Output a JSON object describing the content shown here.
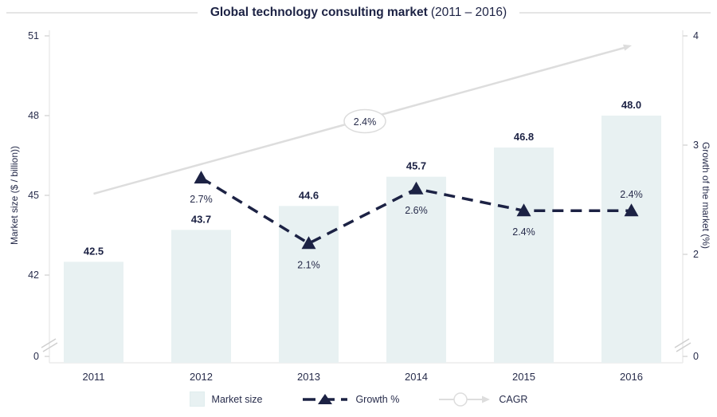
{
  "title": {
    "main": "Global technology consulting market",
    "range": "(2011 – 2016)"
  },
  "colors": {
    "navy": "#1c2244",
    "bar_fill": "#e8f1f2",
    "cagr_line": "#dddddd",
    "axis_line": "#ececec",
    "tick_mark": "#d9d9d9",
    "break_mark": "#cfcfcf",
    "text": "#272c4b",
    "title_rule": "#e5e5e5",
    "badge_fill": "#ffffff",
    "badge_border": "#dcdcdc"
  },
  "chart_data": {
    "type": "bar",
    "title": "Global technology consulting market (2011 – 2016)",
    "categories": [
      "2011",
      "2012",
      "2013",
      "2014",
      "2015",
      "2016"
    ],
    "series": [
      {
        "name": "Market size",
        "type": "bar",
        "axis": "left",
        "values": [
          42.5,
          43.7,
          44.6,
          45.7,
          46.8,
          48.0
        ],
        "labels": [
          "42.5",
          "43.7",
          "44.6",
          "45.7",
          "46.8",
          "48.0"
        ]
      },
      {
        "name": "Growth %",
        "type": "line",
        "axis": "right",
        "values": [
          null,
          2.7,
          2.1,
          2.6,
          2.4,
          2.4
        ],
        "labels": [
          "",
          "2.7%",
          "2.1%",
          "2.6%",
          "2.4%",
          "2.4%"
        ],
        "label_position": [
          "",
          "below",
          "below",
          "below",
          "below",
          "above"
        ]
      },
      {
        "name": "CAGR",
        "type": "trend-arrow",
        "label": "2.4%"
      }
    ],
    "left_axis": {
      "label": "Market size ($ / billion))",
      "ticks": [
        51,
        48,
        45,
        42,
        0
      ],
      "broken": true,
      "visible_range": [
        42,
        51
      ]
    },
    "right_axis": {
      "label": "Growth of the market (%)",
      "ticks": [
        4,
        3,
        2,
        0
      ],
      "broken": true,
      "visible_range": [
        2,
        4
      ]
    },
    "grid": "off",
    "legend_position": "bottom"
  },
  "legend": {
    "items": [
      {
        "label": "Market size",
        "swatch": "bar-swatch"
      },
      {
        "label": "Growth %",
        "swatch": "dashed-line-triangle"
      },
      {
        "label": "CAGR",
        "swatch": "arrow-line-circle"
      }
    ]
  }
}
